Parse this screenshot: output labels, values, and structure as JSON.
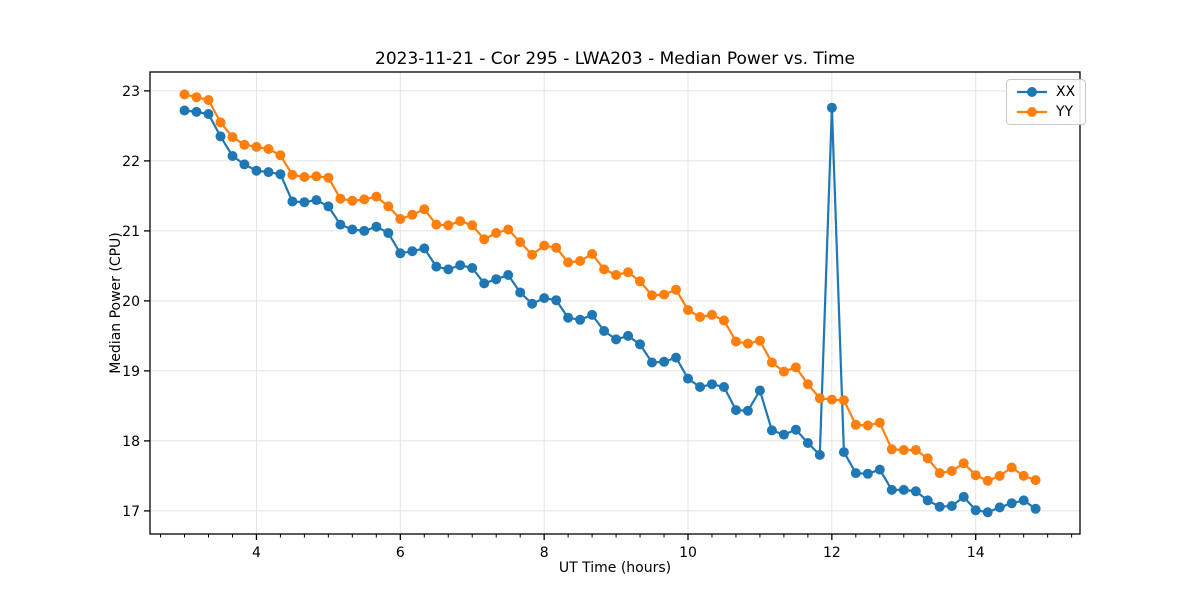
{
  "figure": {
    "title": "2023-11-21 - Cor 295 - LWA203 - Median Power vs. Time",
    "xlabel": "UT Time (hours)",
    "ylabel": "Median Power (CPU)"
  },
  "legend": {
    "position": "upper right",
    "items": [
      {
        "label": "XX",
        "color": "#1f77b4"
      },
      {
        "label": "YY",
        "color": "#ff7f0e"
      }
    ]
  },
  "chart_data": {
    "type": "line",
    "title": "2023-11-21 - Cor 295 - LWA203 - Median Power vs. Time",
    "xlabel": "UT Time (hours)",
    "ylabel": "Median Power (CPU)",
    "xlim": [
      2.52,
      15.45
    ],
    "ylim": [
      16.67,
      23.27
    ],
    "x_major_ticks": [
      4,
      6,
      8,
      10,
      12,
      14
    ],
    "y_major_ticks": [
      17,
      18,
      19,
      20,
      21,
      22,
      23
    ],
    "x_minor_step": 0.33333,
    "grid": "major-only",
    "grid_color": "#e3e3e3",
    "marker": "circle",
    "legend_position": "upper right",
    "x": [
      3.0,
      3.167,
      3.333,
      3.5,
      3.667,
      3.833,
      4.0,
      4.167,
      4.333,
      4.5,
      4.667,
      4.833,
      5.0,
      5.167,
      5.333,
      5.5,
      5.667,
      5.833,
      6.0,
      6.167,
      6.333,
      6.5,
      6.667,
      6.833,
      7.0,
      7.167,
      7.333,
      7.5,
      7.667,
      7.833,
      8.0,
      8.167,
      8.333,
      8.5,
      8.667,
      8.833,
      9.0,
      9.167,
      9.333,
      9.5,
      9.667,
      9.833,
      10.0,
      10.167,
      10.333,
      10.5,
      10.667,
      10.833,
      11.0,
      11.167,
      11.333,
      11.5,
      11.667,
      11.833,
      12.0,
      12.167,
      12.333,
      12.5,
      12.667,
      12.833,
      13.0,
      13.167,
      13.333,
      13.5,
      13.667,
      13.833,
      14.0,
      14.167,
      14.333,
      14.5,
      14.667,
      14.833
    ],
    "series": [
      {
        "name": "XX",
        "color": "#1f77b4",
        "values": [
          22.72,
          22.7,
          22.67,
          22.35,
          22.07,
          21.95,
          21.86,
          21.84,
          21.81,
          21.42,
          21.41,
          21.44,
          21.35,
          21.09,
          21.02,
          21.0,
          21.06,
          20.97,
          20.68,
          20.71,
          20.75,
          20.49,
          20.45,
          20.51,
          20.47,
          20.25,
          20.31,
          20.37,
          20.12,
          19.96,
          20.04,
          20.01,
          19.76,
          19.73,
          19.8,
          19.57,
          19.45,
          19.5,
          19.38,
          19.12,
          19.13,
          19.19,
          18.89,
          18.77,
          18.81,
          18.77,
          18.44,
          18.43,
          18.72,
          18.15,
          18.09,
          18.16,
          17.97,
          17.8,
          22.76,
          17.84,
          17.54,
          17.53,
          17.59,
          17.3,
          17.3,
          17.28,
          17.15,
          17.06,
          17.07,
          17.2,
          17.01,
          16.98,
          17.05,
          17.11,
          17.15,
          17.03
        ]
      },
      {
        "name": "YY",
        "color": "#ff7f0e",
        "values": [
          22.95,
          22.91,
          22.87,
          22.55,
          22.34,
          22.23,
          22.2,
          22.17,
          22.08,
          21.8,
          21.77,
          21.78,
          21.76,
          21.46,
          21.43,
          21.45,
          21.49,
          21.35,
          21.17,
          21.23,
          21.31,
          21.09,
          21.08,
          21.14,
          21.08,
          20.88,
          20.97,
          21.02,
          20.84,
          20.66,
          20.79,
          20.76,
          20.55,
          20.57,
          20.67,
          20.45,
          20.37,
          20.41,
          20.28,
          20.08,
          20.09,
          20.16,
          19.87,
          19.77,
          19.8,
          19.72,
          19.42,
          19.39,
          19.43,
          19.12,
          18.99,
          19.05,
          18.81,
          18.61,
          18.59,
          18.58,
          18.23,
          18.22,
          18.26,
          17.88,
          17.87,
          17.87,
          17.75,
          17.54,
          17.57,
          17.68,
          17.51,
          17.43,
          17.5,
          17.62,
          17.5,
          17.44
        ]
      }
    ]
  }
}
